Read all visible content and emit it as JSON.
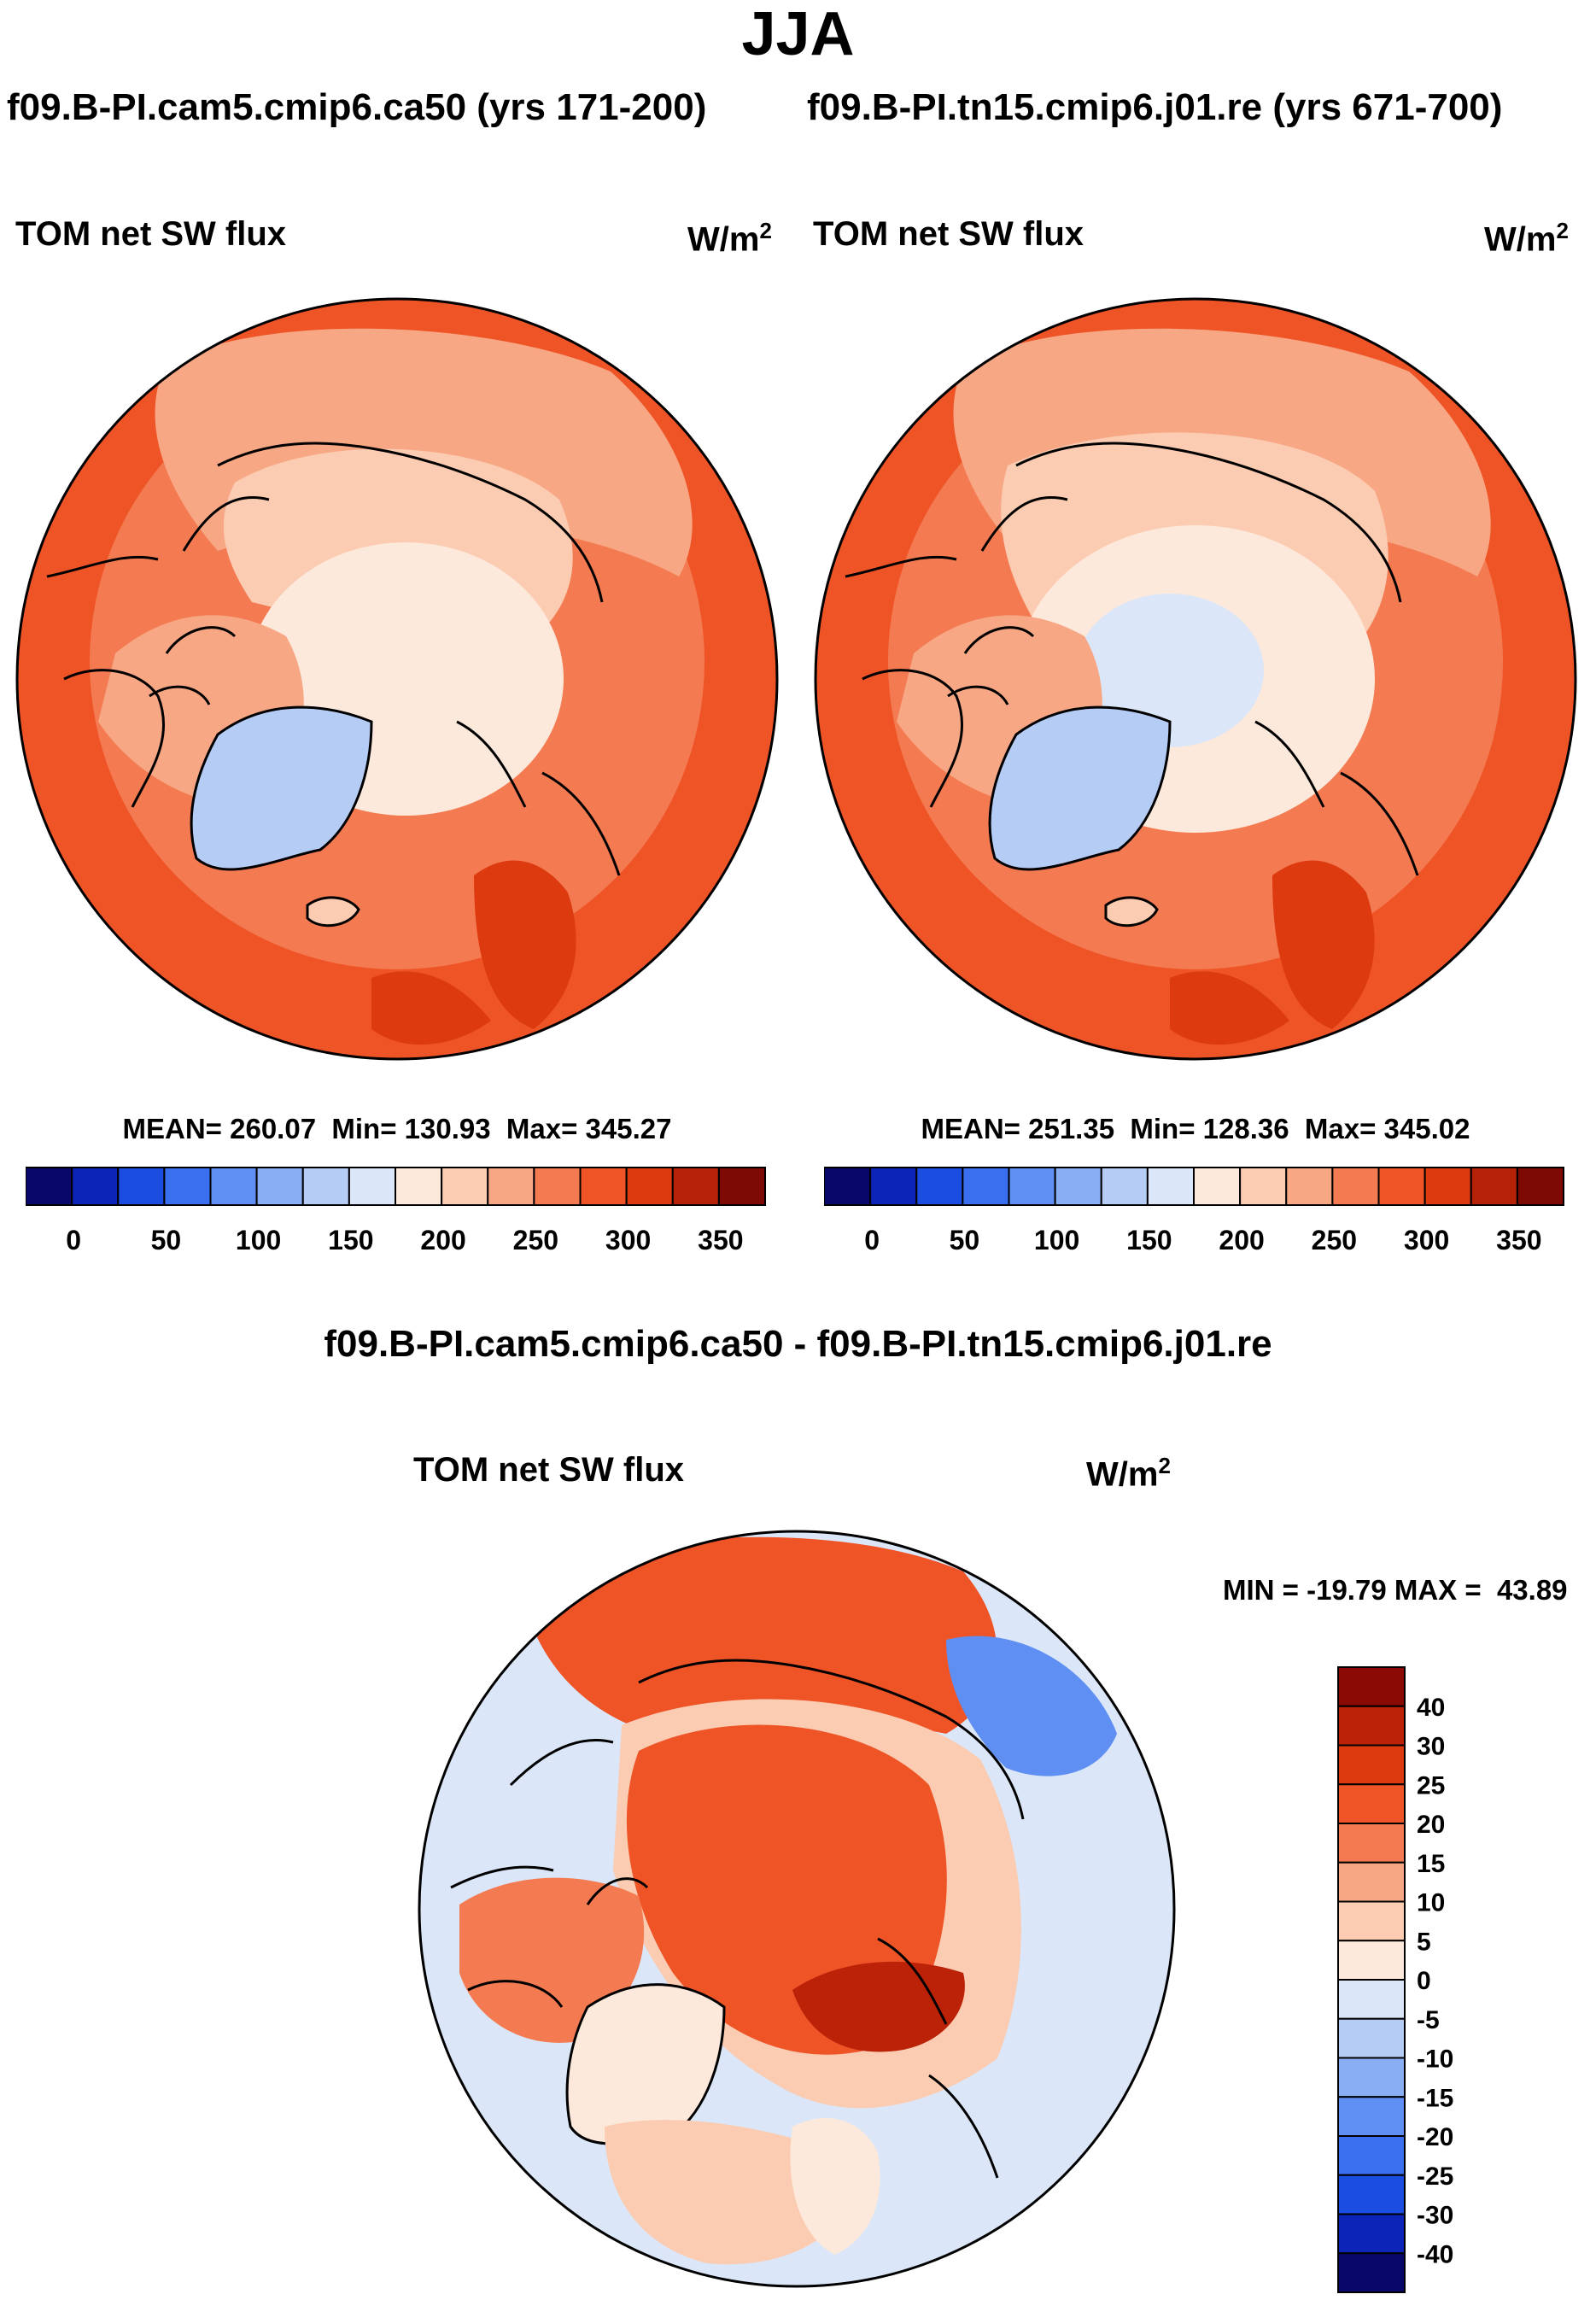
{
  "figure": {
    "season": "JJA",
    "panel_titles": {
      "left": "f09.B-PI.cam5.cmip6.ca50 (yrs 171-200)",
      "right": "f09.B-PI.tn15.cmip6.j01.re (yrs 671-700)"
    },
    "difference_title": "f09.B-PI.cam5.cmip6.ca50 - f09.B-PI.tn15.cmip6.j01.re"
  },
  "panels": {
    "left": {
      "variable": "TOM net SW flux",
      "units": "W/m",
      "units_exp": "2",
      "stats": "MEAN= 260.07  Min= 130.93  Max= 345.27"
    },
    "right": {
      "variable": "TOM net SW flux",
      "units": "W/m",
      "units_exp": "2",
      "stats": "MEAN= 251.35  Min= 128.36  Max= 345.02"
    },
    "diff": {
      "variable": "TOM net SW flux",
      "units": "W/m",
      "units_exp": "2",
      "stats": "MIN = -19.79 MAX =  43.89"
    }
  },
  "colorbar_abs": {
    "labels": [
      "0",
      "50",
      "100",
      "150",
      "200",
      "250",
      "300",
      "350"
    ],
    "colors": [
      "#08086b",
      "#0c24b8",
      "#1b4de0",
      "#3a6ff0",
      "#5f8ff2",
      "#8aaef3",
      "#b5ccf5",
      "#dbe7f8",
      "#fde9db",
      "#fbccb2",
      "#f7a784",
      "#f47a52",
      "#ef5427",
      "#dd3a10",
      "#b62208",
      "#7e0a06"
    ]
  },
  "colorbar_diff": {
    "labels": [
      "40",
      "30",
      "25",
      "20",
      "15",
      "10",
      "5",
      "0",
      "-5",
      "-10",
      "-15",
      "-20",
      "-25",
      "-30",
      "-40"
    ],
    "colors": [
      "#8b0a06",
      "#bb2208",
      "#de3a10",
      "#ef5427",
      "#f47a52",
      "#f7a784",
      "#fbccb2",
      "#fde9db",
      "#dbe7f8",
      "#b5ccf5",
      "#8aaef3",
      "#5f8ff2",
      "#3a6ff0",
      "#1b4de0",
      "#0c24b8",
      "#08086b"
    ]
  },
  "colors": {
    "ocean_left": "#ef5427",
    "ocean_right": "#ef5427",
    "greenland": "#b5ccf5",
    "diff_base": "#dbe7f8",
    "coastline": "#000000"
  }
}
